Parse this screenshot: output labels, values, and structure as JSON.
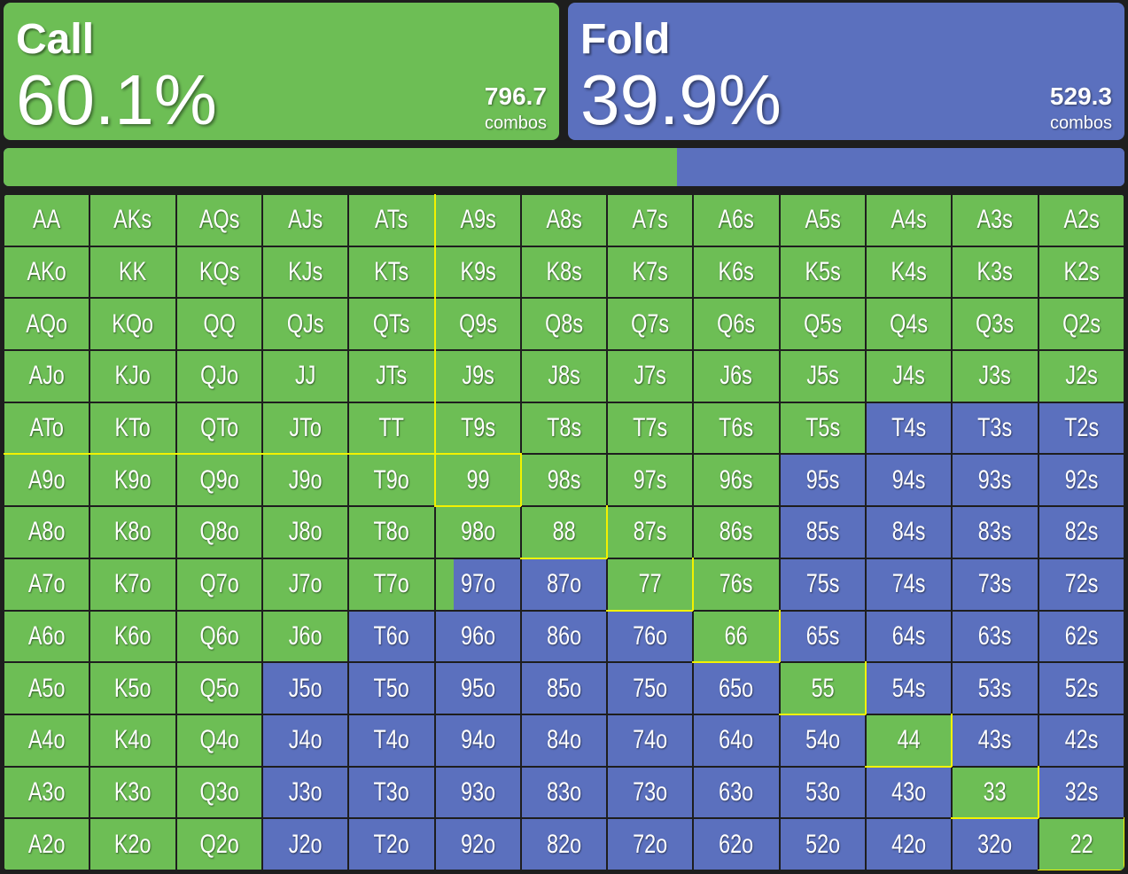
{
  "actions": {
    "call": {
      "label": "Call",
      "percent": "60.1%",
      "combos": "796.7",
      "combos_label": "combos",
      "frequency": 0.601,
      "color": "#6dbe55"
    },
    "fold": {
      "label": "Fold",
      "percent": "39.9%",
      "combos": "529.3",
      "combos_label": "combos",
      "frequency": 0.399,
      "color": "#5b70be"
    }
  },
  "grid": {
    "rows": [
      [
        "AA",
        "AKs",
        "AQs",
        "AJs",
        "ATs",
        "A9s",
        "A8s",
        "A7s",
        "A6s",
        "A5s",
        "A4s",
        "A3s",
        "A2s"
      ],
      [
        "AKo",
        "KK",
        "KQs",
        "KJs",
        "KTs",
        "K9s",
        "K8s",
        "K7s",
        "K6s",
        "K5s",
        "K4s",
        "K3s",
        "K2s"
      ],
      [
        "AQo",
        "KQo",
        "QQ",
        "QJs",
        "QTs",
        "Q9s",
        "Q8s",
        "Q7s",
        "Q6s",
        "Q5s",
        "Q4s",
        "Q3s",
        "Q2s"
      ],
      [
        "AJo",
        "KJo",
        "QJo",
        "JJ",
        "JTs",
        "J9s",
        "J8s",
        "J7s",
        "J6s",
        "J5s",
        "J4s",
        "J3s",
        "J2s"
      ],
      [
        "ATo",
        "KTo",
        "QTo",
        "JTo",
        "TT",
        "T9s",
        "T8s",
        "T7s",
        "T6s",
        "T5s",
        "T4s",
        "T3s",
        "T2s"
      ],
      [
        "A9o",
        "K9o",
        "Q9o",
        "J9o",
        "T9o",
        "99",
        "98s",
        "97s",
        "96s",
        "95s",
        "94s",
        "93s",
        "92s"
      ],
      [
        "A8o",
        "K8o",
        "Q8o",
        "J8o",
        "T8o",
        "98o",
        "88",
        "87s",
        "86s",
        "85s",
        "84s",
        "83s",
        "82s"
      ],
      [
        "A7o",
        "K7o",
        "Q7o",
        "J7o",
        "T7o",
        "97o",
        "87o",
        "77",
        "76s",
        "75s",
        "74s",
        "73s",
        "72s"
      ],
      [
        "A6o",
        "K6o",
        "Q6o",
        "J6o",
        "T6o",
        "96o",
        "86o",
        "76o",
        "66",
        "65s",
        "64s",
        "63s",
        "62s"
      ],
      [
        "A5o",
        "K5o",
        "Q5o",
        "J5o",
        "T5o",
        "95o",
        "85o",
        "75o",
        "65o",
        "55",
        "54s",
        "53s",
        "52s"
      ],
      [
        "A4o",
        "K4o",
        "Q4o",
        "J4o",
        "T4o",
        "94o",
        "84o",
        "74o",
        "64o",
        "54o",
        "44",
        "43s",
        "42s"
      ],
      [
        "A3o",
        "K3o",
        "Q3o",
        "J3o",
        "T3o",
        "93o",
        "83o",
        "73o",
        "63o",
        "53o",
        "43o",
        "33",
        "32s"
      ],
      [
        "A2o",
        "K2o",
        "Q2o",
        "J2o",
        "T2o",
        "92o",
        "82o",
        "72o",
        "62o",
        "52o",
        "42o",
        "32o",
        "22"
      ]
    ],
    "call_frequency": [
      [
        1,
        1,
        1,
        1,
        1,
        1,
        1,
        1,
        1,
        1,
        1,
        1,
        1
      ],
      [
        1,
        1,
        1,
        1,
        1,
        1,
        1,
        1,
        1,
        1,
        1,
        1,
        1
      ],
      [
        1,
        1,
        1,
        1,
        1,
        1,
        1,
        1,
        1,
        1,
        1,
        1,
        1
      ],
      [
        1,
        1,
        1,
        1,
        1,
        1,
        1,
        1,
        1,
        1,
        1,
        1,
        1
      ],
      [
        1,
        1,
        1,
        1,
        1,
        1,
        1,
        1,
        1,
        1,
        0,
        0,
        0
      ],
      [
        1,
        1,
        1,
        1,
        1,
        1,
        1,
        1,
        1,
        0,
        0,
        0,
        0
      ],
      [
        1,
        1,
        1,
        1,
        1,
        1,
        1,
        1,
        1,
        0,
        0,
        0,
        0
      ],
      [
        1,
        1,
        1,
        1,
        1,
        0.22,
        0,
        1,
        1,
        0,
        0,
        0,
        0
      ],
      [
        1,
        1,
        1,
        1,
        0,
        0,
        0,
        0,
        1,
        0,
        0,
        0,
        0
      ],
      [
        1,
        1,
        1,
        0,
        0,
        0,
        0,
        0,
        0,
        1,
        0,
        0,
        0
      ],
      [
        1,
        1,
        1,
        0,
        0,
        0,
        0,
        0,
        0,
        0,
        1,
        0,
        0
      ],
      [
        1,
        1,
        1,
        0,
        0,
        0,
        0,
        0,
        0,
        0,
        0,
        1,
        0
      ],
      [
        1,
        1,
        1,
        0,
        0,
        0,
        0,
        0,
        0,
        0,
        0,
        0,
        1
      ]
    ]
  }
}
